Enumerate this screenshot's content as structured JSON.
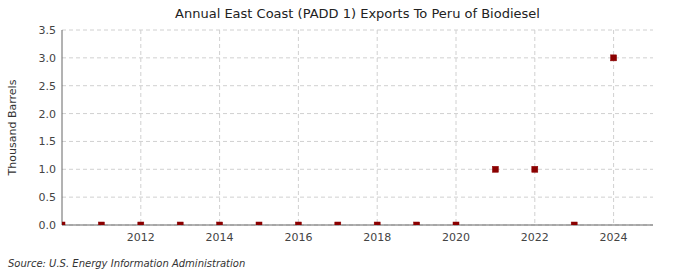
{
  "chart_data": {
    "type": "scatter",
    "title": "Annual East Coast (PADD 1) Exports To Peru of Biodiesel",
    "ylabel": "Thousand Barrels",
    "annotations": [
      "Source: U.S. Energy Information Administration"
    ],
    "x": [
      2010,
      2011,
      2012,
      2013,
      2014,
      2015,
      2016,
      2017,
      2018,
      2019,
      2020,
      2021,
      2022,
      2023,
      2024
    ],
    "values": [
      0.0,
      0.0,
      0.0,
      0.0,
      0.0,
      0.0,
      0.0,
      0.0,
      0.0,
      0.0,
      0.0,
      1.0,
      1.0,
      0.0,
      3.0
    ],
    "color": "#8b0000",
    "marker": "square",
    "xlim": [
      2010.0,
      2025.0
    ],
    "xticks": [
      2012,
      2014,
      2016,
      2018,
      2020,
      2022,
      2024
    ],
    "ylim": [
      0.0,
      3.5
    ],
    "yticks": [
      {
        "value": 0.0,
        "label": "0.0"
      },
      0.5,
      {
        "value": 1.0,
        "label": "1.0"
      },
      1.5,
      {
        "value": 2.0,
        "label": "2.0"
      },
      2.5,
      {
        "value": 3.0,
        "label": "3.0"
      },
      3.5
    ],
    "grid": true
  }
}
